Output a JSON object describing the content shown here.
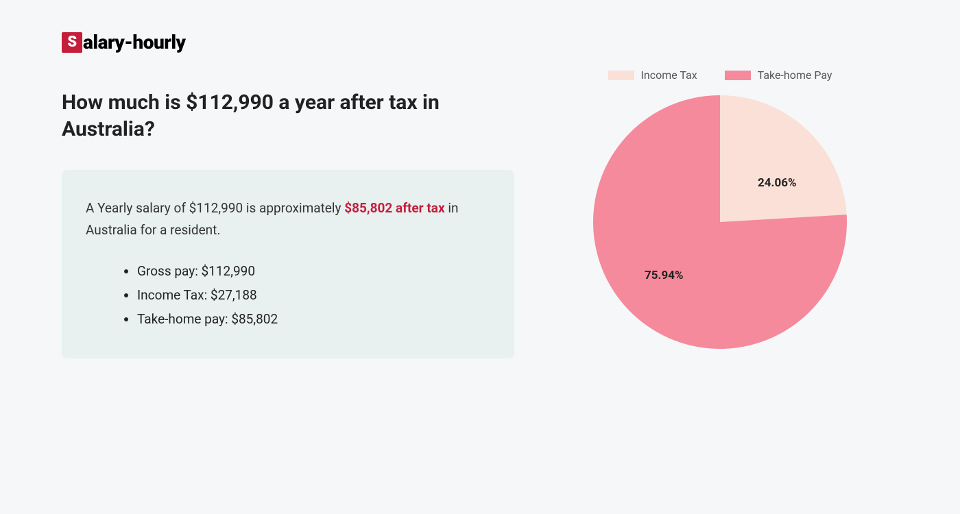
{
  "logo": {
    "icon_letter": "S",
    "rest": "alary-hourly",
    "icon_bg": "#c41e3a",
    "icon_fg": "#ffffff"
  },
  "headline": "How much is $112,990 a year after tax in Australia?",
  "summary": {
    "prefix": "A Yearly salary of $112,990 is approximately ",
    "highlight": "$85,802 after tax",
    "suffix": " in Australia for a resident.",
    "highlight_color": "#c41e3a",
    "box_bg": "#e8f0f0"
  },
  "bullets": [
    "Gross pay: $112,990",
    "Income Tax: $27,188",
    "Take-home pay: $85,802"
  ],
  "chart": {
    "type": "pie",
    "background_color": "#f5f7f9",
    "radius": 185,
    "slices": [
      {
        "label": "Income Tax",
        "value": 24.06,
        "color": "#fae0d7",
        "pct_label": "24.06%"
      },
      {
        "label": "Take-home Pay",
        "value": 75.94,
        "color": "#f48a9b",
        "pct_label": "75.94%"
      }
    ],
    "legend_swatch_w": 38,
    "legend_swatch_h": 14,
    "label_fontsize": 17,
    "label_fontweight": 700,
    "label_color": "#222222",
    "legend_fontsize": 16,
    "legend_color": "#555555"
  }
}
